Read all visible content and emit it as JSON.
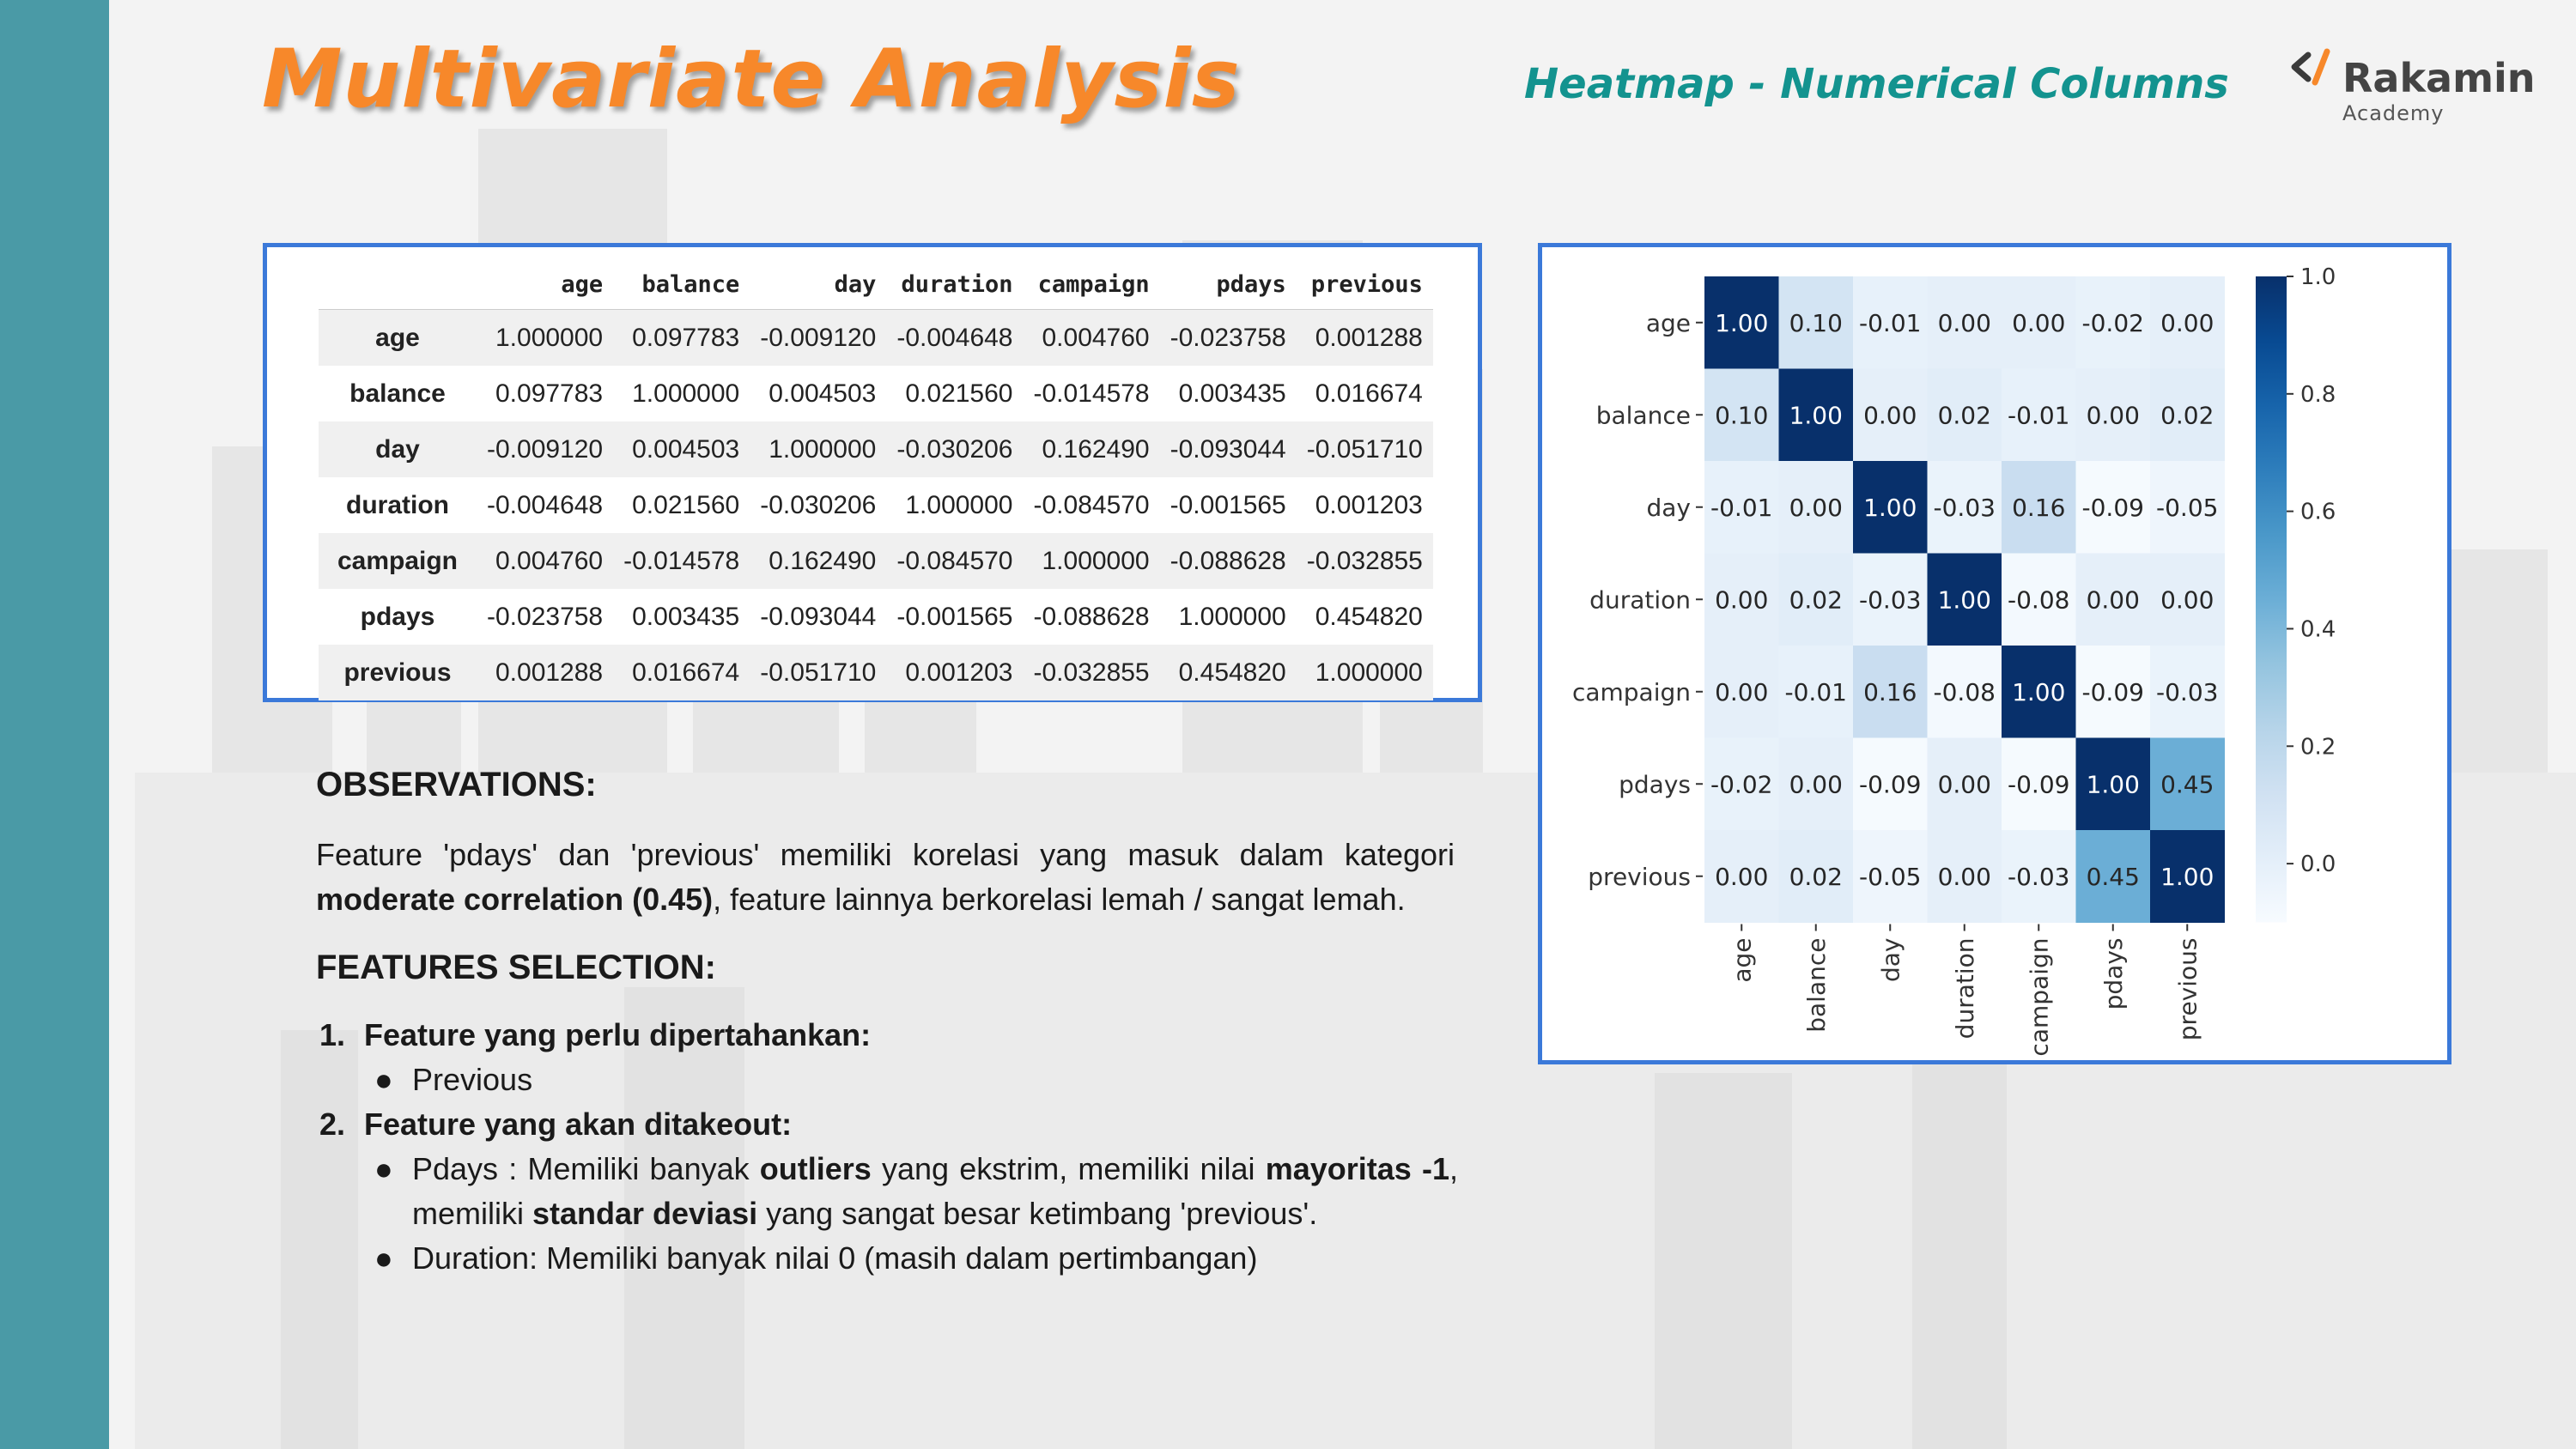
{
  "slide": {
    "title": "Multivariate Analysis",
    "subtitle": "Heatmap - Numerical Columns",
    "logo": {
      "mark": "</",
      "name": "Rakamin",
      "sub": "Academy"
    },
    "colors": {
      "sidebar": "#4a9aa6",
      "title": "#f7882a",
      "subtitle": "#13938f",
      "frame": "#3b79d9"
    }
  },
  "table": {
    "columns": [
      "age",
      "balance",
      "day",
      "duration",
      "campaign",
      "pdays",
      "previous"
    ],
    "rows": [
      {
        "name": "age",
        "values": [
          "1.000000",
          "0.097783",
          "-0.009120",
          "-0.004648",
          "0.004760",
          "-0.023758",
          "0.001288"
        ]
      },
      {
        "name": "balance",
        "values": [
          "0.097783",
          "1.000000",
          "0.004503",
          "0.021560",
          "-0.014578",
          "0.003435",
          "0.016674"
        ]
      },
      {
        "name": "day",
        "values": [
          "-0.009120",
          "0.004503",
          "1.000000",
          "-0.030206",
          "0.162490",
          "-0.093044",
          "-0.051710"
        ]
      },
      {
        "name": "duration",
        "values": [
          "-0.004648",
          "0.021560",
          "-0.030206",
          "1.000000",
          "-0.084570",
          "-0.001565",
          "0.001203"
        ]
      },
      {
        "name": "campaign",
        "values": [
          "0.004760",
          "-0.014578",
          "0.162490",
          "-0.084570",
          "1.000000",
          "-0.088628",
          "-0.032855"
        ]
      },
      {
        "name": "pdays",
        "values": [
          "-0.023758",
          "0.003435",
          "-0.093044",
          "-0.001565",
          "-0.088628",
          "1.000000",
          "0.454820"
        ]
      },
      {
        "name": "previous",
        "values": [
          "0.001288",
          "0.016674",
          "-0.051710",
          "0.001203",
          "-0.032855",
          "0.454820",
          "1.000000"
        ]
      }
    ]
  },
  "chart_data": {
    "type": "heatmap",
    "x_labels": [
      "age",
      "balance",
      "day",
      "duration",
      "campaign",
      "pdays",
      "previous"
    ],
    "y_labels": [
      "age",
      "balance",
      "day",
      "duration",
      "campaign",
      "pdays",
      "previous"
    ],
    "values": [
      [
        1.0,
        0.1,
        -0.01,
        -0.0,
        0.0,
        -0.02,
        0.0
      ],
      [
        0.1,
        1.0,
        0.0,
        0.02,
        -0.01,
        0.0,
        0.02
      ],
      [
        -0.01,
        0.0,
        1.0,
        -0.03,
        0.16,
        -0.09,
        -0.05
      ],
      [
        -0.0,
        0.02,
        -0.03,
        1.0,
        -0.08,
        -0.0,
        0.0
      ],
      [
        0.0,
        -0.01,
        0.16,
        -0.08,
        1.0,
        -0.09,
        -0.03
      ],
      [
        -0.02,
        0.0,
        -0.09,
        -0.0,
        -0.09,
        1.0,
        0.45
      ],
      [
        0.0,
        0.02,
        -0.05,
        0.0,
        -0.03,
        0.45,
        1.0
      ]
    ],
    "colorbar_ticks": [
      "1.0",
      "0.8",
      "0.6",
      "0.4",
      "0.2",
      "0.0"
    ],
    "colorbar_range": [
      -0.1,
      1.0
    ],
    "colormap": "Blues"
  },
  "observations": {
    "title": "OBSERVATIONS:",
    "text_1": "Feature 'pdays' dan 'previous' memiliki korelasi yang masuk dalam kategori ",
    "text_bold": "moderate correlation (0.45)",
    "text_2": ", feature lainnya berkorelasi lemah / sangat lemah."
  },
  "features": {
    "title": "FEATURES SELECTION:",
    "item1_num": "1.",
    "item1": "Feature yang perlu dipertahankan:",
    "item1_bullet": "Previous",
    "item2_num": "2.",
    "item2": "Feature yang akan ditakeout:",
    "bullet_dot": "●",
    "pdays_a": "Pdays : Memiliki banyak ",
    "pdays_b": "outliers",
    "pdays_c": " yang ekstrim, memiliki nilai ",
    "pdays_d": "mayoritas -1",
    "pdays_e": ", memiliki ",
    "pdays_f": "standar deviasi",
    "pdays_g": " yang sangat besar ketimbang 'previous'.",
    "duration_text": "Duration: Memiliki banyak nilai 0 (masih dalam pertimbangan)"
  }
}
